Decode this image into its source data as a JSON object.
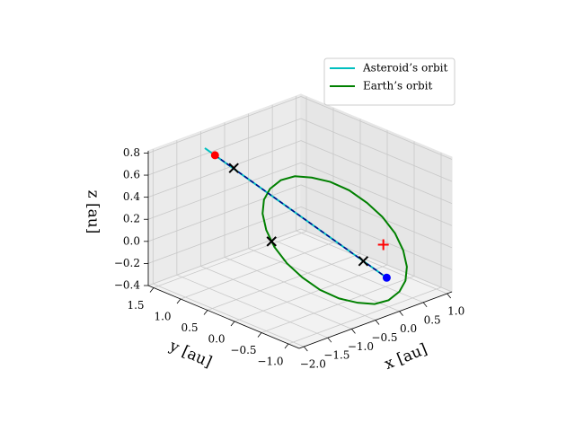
{
  "chart_data": {
    "type": "line3d",
    "xlabel": "x [au]",
    "ylabel": "y [au]",
    "zlabel": "z [au]",
    "xlim": [
      -2.1,
      1.1
    ],
    "ylim": [
      -1.2,
      1.6
    ],
    "zlim": [
      -0.4,
      0.82
    ],
    "xticks": [
      {
        "value": -2.0,
        "label": "−2.0"
      },
      {
        "value": -1.5,
        "label": "−1.5"
      },
      {
        "value": -1.0,
        "label": "−1.0"
      },
      {
        "value": -0.5,
        "label": "−0.5"
      },
      {
        "value": 0.0,
        "label": "0.0"
      },
      {
        "value": 0.5,
        "label": "0.5"
      },
      {
        "value": 1.0,
        "label": "1.0"
      }
    ],
    "yticks": [
      {
        "value": -1.0,
        "label": "−1.0"
      },
      {
        "value": -0.5,
        "label": "−0.5"
      },
      {
        "value": 0.0,
        "label": "0.0"
      },
      {
        "value": 0.5,
        "label": "0.5"
      },
      {
        "value": 1.0,
        "label": "1.0"
      },
      {
        "value": 1.5,
        "label": "1.5"
      }
    ],
    "zticks": [
      {
        "value": -0.4,
        "label": "−0.4"
      },
      {
        "value": -0.2,
        "label": "−0.2"
      },
      {
        "value": 0.0,
        "label": "0.0"
      },
      0.2,
      0.4,
      0.6,
      0.8
    ],
    "grid": true,
    "legend": "upper right",
    "series": [
      {
        "name": "Asteroid’s orbit",
        "color": "#00bfbf",
        "x": [
          -1.4,
          0.4
        ],
        "y": [
          1.17,
          -0.61
        ],
        "z": [
          0.82,
          -0.28
        ]
      },
      {
        "name": "Earth’s orbit",
        "color": "#008000",
        "x": [
          1,
          0.97,
          0.87,
          0.71,
          0.5,
          0.26,
          0,
          -0.26,
          -0.5,
          -0.71,
          -0.87,
          -0.97,
          -1,
          -0.97,
          -0.87,
          -0.71,
          -0.5,
          -0.26,
          0,
          0.26,
          0.5,
          0.71,
          0.87,
          0.97,
          1
        ],
        "y": [
          0,
          0.26,
          0.5,
          0.71,
          0.87,
          0.97,
          1,
          0.97,
          0.87,
          0.71,
          0.5,
          0.26,
          0,
          -0.26,
          -0.5,
          -0.71,
          -0.87,
          -0.97,
          -1,
          -0.97,
          -0.87,
          -0.71,
          -0.5,
          -0.26,
          0
        ],
        "z": [
          0.05,
          0.13,
          0.21,
          0.27,
          0.31,
          0.34,
          0.34,
          0.31,
          0.27,
          0.21,
          0.13,
          0.04,
          -0.05,
          -0.13,
          -0.21,
          -0.27,
          -0.31,
          -0.34,
          -0.34,
          -0.31,
          -0.27,
          -0.21,
          -0.13,
          -0.04,
          0.05
        ]
      },
      {
        "color": "#00008b",
        "dashed": true,
        "x": [
          -1.3,
          0.4
        ],
        "y": [
          1.07,
          -0.61
        ],
        "z": [
          0.76,
          -0.28
        ]
      }
    ],
    "points": [
      {
        "x": -1.3,
        "y": 1.07,
        "z": 0.76,
        "marker": "circle",
        "color": "#ff0000"
      },
      {
        "x": 0.4,
        "y": -0.61,
        "z": -0.28,
        "marker": "circle",
        "color": "#0000ff"
      },
      {
        "x": -1.11,
        "y": 0.89,
        "z": 0.65,
        "marker": "cross",
        "color": "#000000"
      },
      {
        "x": 0.17,
        "y": -0.38,
        "z": -0.14,
        "marker": "cross",
        "color": "#000000"
      },
      {
        "x": -0.94,
        "y": 0.34,
        "z": 0.07,
        "marker": "cross",
        "color": "#000000"
      },
      {
        "x": 0.42,
        "y": -0.53,
        "z": 0,
        "marker": "plus",
        "color": "#ff0000"
      }
    ]
  }
}
